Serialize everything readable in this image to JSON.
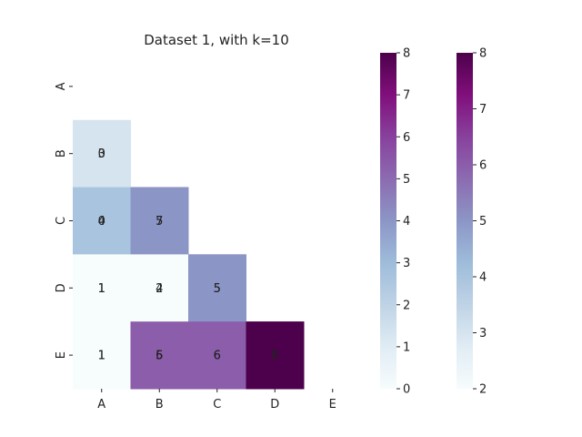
{
  "chart_data": {
    "type": "heatmap",
    "title": "Dataset 1, with k=10",
    "xlabel": "",
    "ylabel": "",
    "x_categories": [
      "A",
      "B",
      "C",
      "D",
      "E"
    ],
    "y_categories": [
      "A",
      "B",
      "C",
      "D",
      "E"
    ],
    "mask": "upper-triangle-including-diagonal",
    "colormap": "BuPu",
    "layers": [
      {
        "cells": [
          {
            "row": "B",
            "col": "A",
            "value": 0
          },
          {
            "row": "C",
            "col": "A",
            "value": 0
          },
          {
            "row": "C",
            "col": "B",
            "value": 7
          },
          {
            "row": "D",
            "col": "A",
            "value": 1
          },
          {
            "row": "D",
            "col": "B",
            "value": 4
          },
          {
            "row": "D",
            "col": "C",
            "value": 5
          },
          {
            "row": "E",
            "col": "A",
            "value": 1
          },
          {
            "row": "E",
            "col": "B",
            "value": 5
          },
          {
            "row": "E",
            "col": "C",
            "value": 6
          },
          {
            "row": "E",
            "col": "D",
            "value": 8
          }
        ],
        "colorbar": {
          "vmin": 0,
          "vmax": 8,
          "ticks": [
            "0",
            "1",
            "2",
            "3",
            "4",
            "5",
            "6",
            "7",
            "8"
          ]
        }
      },
      {
        "cells": [
          {
            "row": "B",
            "col": "A",
            "value": 3
          },
          {
            "row": "C",
            "col": "A",
            "value": 4
          },
          {
            "row": "C",
            "col": "B",
            "value": 5
          },
          {
            "row": "D",
            "col": "A",
            "value": 1
          },
          {
            "row": "D",
            "col": "B",
            "value": 2
          },
          {
            "row": "D",
            "col": "C",
            "value": 5
          },
          {
            "row": "E",
            "col": "A",
            "value": 1
          },
          {
            "row": "E",
            "col": "B",
            "value": 6
          },
          {
            "row": "E",
            "col": "C",
            "value": 6
          },
          {
            "row": "E",
            "col": "D",
            "value": 8
          }
        ],
        "colorbar": {
          "vmin": 2,
          "vmax": 8,
          "ticks": [
            "2",
            "3",
            "4",
            "5",
            "6",
            "7",
            "8"
          ]
        }
      }
    ],
    "colorbar_colors": [
      "#f7fcfd",
      "#e0ecf4",
      "#bfd3e6",
      "#9ebcda",
      "#8c96c6",
      "#8c6bb1",
      "#88419d",
      "#810f7c",
      "#4d004b"
    ]
  }
}
